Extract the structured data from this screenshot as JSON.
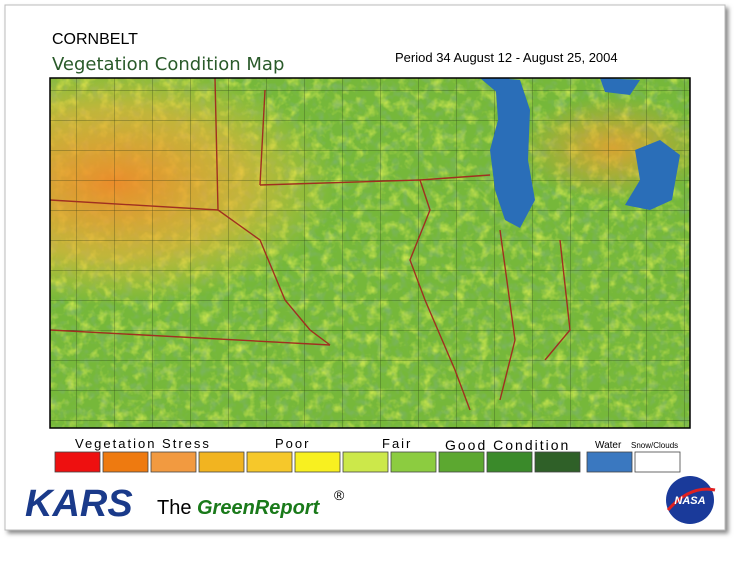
{
  "header": {
    "region": "CORNBELT",
    "title": "Vegetation Condition Map",
    "period": "Period 34  August 12 - August 25, 2004"
  },
  "legend": {
    "labels": [
      "Vegetation Stress",
      "Poor",
      "Fair",
      "Good Condition",
      "Water",
      "Snow/Clouds"
    ]
  },
  "footer": {
    "brand": "KARS",
    "the": "The",
    "name": "GreenReport",
    "mark": "®",
    "logo": "NASA"
  }
}
